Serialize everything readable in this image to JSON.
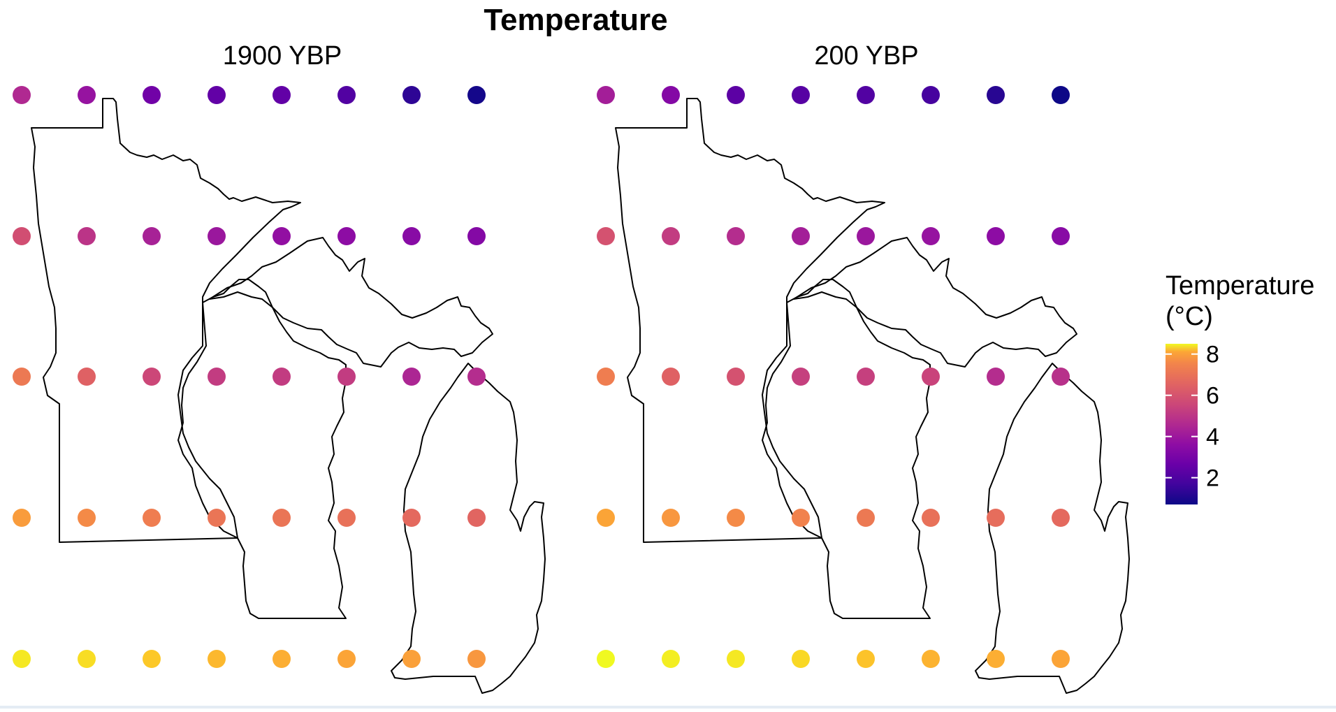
{
  "chart_data": {
    "type": "scatter",
    "title": "Temperature",
    "legend": {
      "title_line1": "Temperature",
      "title_line2": "(°C)",
      "ticks": [
        2,
        4,
        6,
        8
      ],
      "range": [
        0.7,
        8.5
      ],
      "palette": "plasma",
      "placement": "right"
    },
    "grid": false,
    "panels": [
      {
        "label": "1900 YBP",
        "rows": [
          [
            3.8,
            3.2,
            2.4,
            2.1,
            2.1,
            1.8,
            1.2,
            0.8
          ],
          [
            4.8,
            4.1,
            3.6,
            3.3,
            3.1,
            3.0,
            2.9,
            2.8
          ],
          [
            5.9,
            5.3,
            4.6,
            4.3,
            4.3,
            4.3,
            3.7,
            3.9
          ],
          [
            6.7,
            6.3,
            6.0,
            5.8,
            5.8,
            5.7,
            5.5,
            5.4
          ],
          [
            8.2,
            8.0,
            7.6,
            7.3,
            7.1,
            6.9,
            6.8,
            6.6
          ]
        ]
      },
      {
        "label": "200 YBP",
        "rows": [
          [
            3.5,
            2.8,
            2.0,
            1.9,
            1.8,
            1.6,
            1.1,
            0.7
          ],
          [
            4.9,
            4.3,
            3.9,
            3.5,
            3.3,
            3.2,
            3.0,
            2.9
          ],
          [
            6.0,
            5.3,
            4.9,
            4.4,
            4.4,
            4.5,
            3.9,
            4.0
          ],
          [
            6.9,
            6.6,
            6.3,
            6.1,
            5.9,
            5.7,
            5.6,
            5.5
          ],
          [
            8.5,
            8.3,
            8.2,
            7.9,
            7.5,
            7.2,
            7.1,
            6.9
          ]
        ]
      }
    ]
  }
}
